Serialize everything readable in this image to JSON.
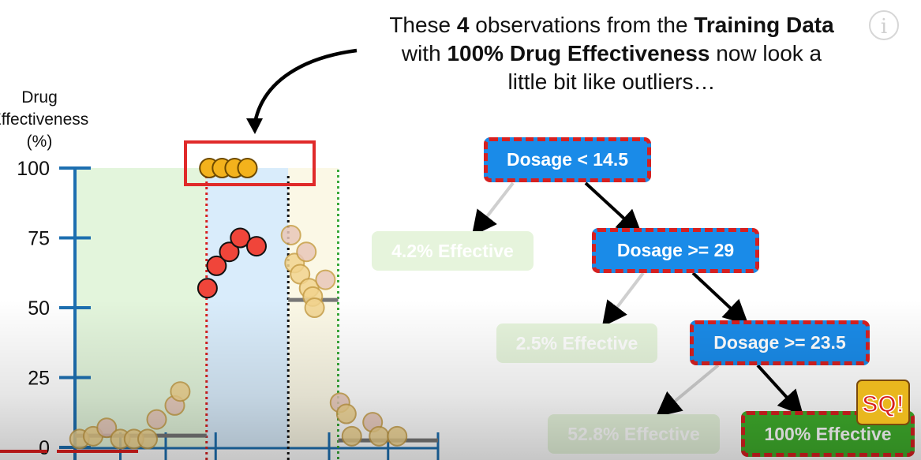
{
  "caption": {
    "t1": "These ",
    "b1": "4",
    "t2": " observations from the ",
    "b2": "Training Data",
    "t3": "with ",
    "b3": "100% Drug Effectiveness",
    "t4": " now look a",
    "t5": "little bit like outliers…"
  },
  "info_icon": "i",
  "chart_data": {
    "type": "scatter",
    "ylabel_lines": [
      "Drug",
      "Effectiveness",
      "(%)"
    ],
    "yticks": [
      0,
      25,
      50,
      75,
      100
    ],
    "ylim": [
      0,
      100
    ],
    "xlim": [
      0,
      40
    ],
    "thresholds": [
      14.5,
      23.5,
      29
    ],
    "outlier_box_note": "4 observations at 100%",
    "series": [
      {
        "name": "left_region",
        "style": "faded-yellow",
        "points": [
          [
            0.5,
            3
          ],
          [
            2,
            4
          ],
          [
            3.5,
            7
          ],
          [
            5,
            3
          ],
          [
            6.5,
            3
          ],
          [
            8,
            3
          ],
          [
            9,
            10
          ],
          [
            11,
            15
          ],
          [
            11.6,
            20
          ]
        ]
      },
      {
        "name": "middle_region",
        "style": "red",
        "points": [
          [
            14.6,
            57
          ],
          [
            15.6,
            65
          ],
          [
            17,
            70
          ],
          [
            18.2,
            75
          ],
          [
            20,
            72
          ]
        ]
      },
      {
        "name": "middle_outliers",
        "style": "orange",
        "points": [
          [
            14.8,
            100
          ],
          [
            16.2,
            100
          ],
          [
            17.6,
            100
          ],
          [
            19,
            100
          ]
        ]
      },
      {
        "name": "right_region",
        "style": "faded-yellow",
        "points": [
          [
            23.8,
            76
          ],
          [
            24.2,
            66
          ],
          [
            25.5,
            70
          ],
          [
            24.8,
            62
          ],
          [
            25.8,
            57
          ],
          [
            26.2,
            54
          ],
          [
            26.4,
            50
          ],
          [
            27.6,
            60
          ]
        ]
      },
      {
        "name": "far_right_region",
        "style": "faded-yellow",
        "points": [
          [
            29.2,
            16
          ],
          [
            29.9,
            12
          ],
          [
            30.5,
            4
          ],
          [
            32.8,
            9
          ],
          [
            33.5,
            4
          ],
          [
            35.5,
            4
          ]
        ]
      }
    ],
    "means": [
      {
        "from": 0,
        "to": 14.5,
        "value": 4.2
      },
      {
        "from": 23.5,
        "to": 29,
        "value": 52.8
      },
      {
        "from": 29,
        "to": 40,
        "value": 2.5
      }
    ]
  },
  "tree": {
    "root": "Dosage < 14.5",
    "n2": "Dosage >= 29",
    "n3": "Dosage >= 23.5",
    "leaf1": "4.2% Effective",
    "leaf2": "2.5% Effective",
    "leaf3": "52.8% Effective",
    "leaf4": "100% Effective"
  },
  "logo_text": "SQ!"
}
